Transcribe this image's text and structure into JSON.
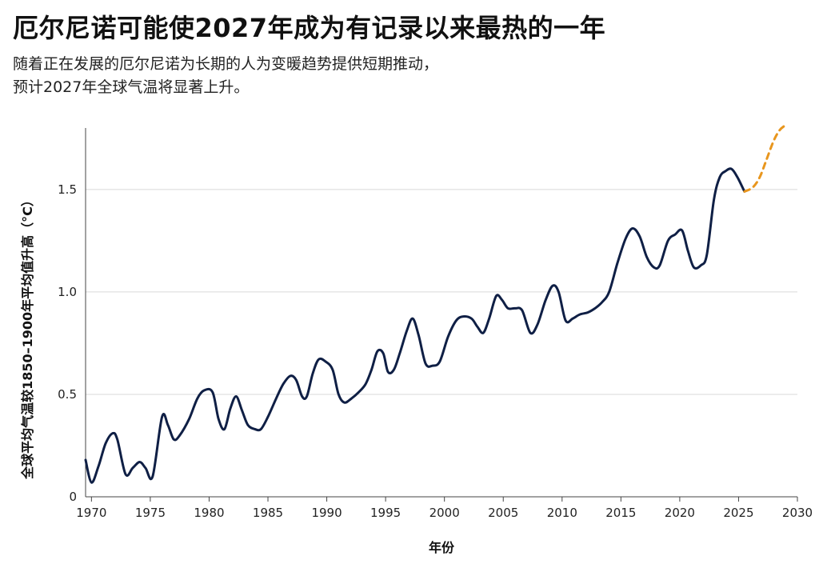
{
  "chart_data": {
    "type": "line",
    "title": "厄尔尼诺可能使2027年成为有记录以来最热的一年",
    "subtitle_lines": [
      "随着正在发展的厄尔尼诺为长期的人为变暖趋势提供短期推动，",
      "预计2027年全球气温将显著上升。"
    ],
    "xlabel": "年份",
    "ylabel": "全球平均气温较1850–1900年平均值升高（°C）",
    "xlim": [
      1969.5,
      2030
    ],
    "ylim": [
      0,
      1.8
    ],
    "xticks": [
      1970,
      1975,
      1980,
      1985,
      1990,
      1995,
      2000,
      2005,
      2010,
      2015,
      2020,
      2025,
      2030
    ],
    "yticks": [
      0,
      0.5,
      1.0,
      1.5
    ],
    "ytick_labels": [
      "0",
      "0.5",
      "1.0",
      "1.5"
    ],
    "grid": "horizontal",
    "series": [
      {
        "style": "solid",
        "color": "#0f1f45",
        "points": [
          [
            1969.5,
            0.18
          ],
          [
            1970.0,
            0.07
          ],
          [
            1970.6,
            0.15
          ],
          [
            1971.2,
            0.26
          ],
          [
            1971.8,
            0.31
          ],
          [
            1972.2,
            0.28
          ],
          [
            1972.9,
            0.11
          ],
          [
            1973.5,
            0.14
          ],
          [
            1974.1,
            0.17
          ],
          [
            1974.6,
            0.14
          ],
          [
            1975.2,
            0.1
          ],
          [
            1976.0,
            0.39
          ],
          [
            1976.5,
            0.35
          ],
          [
            1977.0,
            0.28
          ],
          [
            1977.5,
            0.3
          ],
          [
            1978.3,
            0.38
          ],
          [
            1979.0,
            0.48
          ],
          [
            1979.6,
            0.52
          ],
          [
            1980.3,
            0.51
          ],
          [
            1980.8,
            0.38
          ],
          [
            1981.3,
            0.33
          ],
          [
            1981.8,
            0.43
          ],
          [
            1982.3,
            0.49
          ],
          [
            1982.8,
            0.42
          ],
          [
            1983.3,
            0.35
          ],
          [
            1983.9,
            0.33
          ],
          [
            1984.4,
            0.33
          ],
          [
            1985.0,
            0.39
          ],
          [
            1985.7,
            0.48
          ],
          [
            1986.3,
            0.55
          ],
          [
            1986.9,
            0.59
          ],
          [
            1987.4,
            0.57
          ],
          [
            1987.9,
            0.49
          ],
          [
            1988.3,
            0.49
          ],
          [
            1988.8,
            0.6
          ],
          [
            1989.3,
            0.67
          ],
          [
            1989.9,
            0.66
          ],
          [
            1990.5,
            0.62
          ],
          [
            1991.0,
            0.5
          ],
          [
            1991.5,
            0.46
          ],
          [
            1992.1,
            0.48
          ],
          [
            1992.7,
            0.51
          ],
          [
            1993.3,
            0.55
          ],
          [
            1993.8,
            0.62
          ],
          [
            1994.3,
            0.71
          ],
          [
            1994.8,
            0.7
          ],
          [
            1995.2,
            0.61
          ],
          [
            1995.7,
            0.62
          ],
          [
            1996.2,
            0.7
          ],
          [
            1996.8,
            0.81
          ],
          [
            1997.3,
            0.87
          ],
          [
            1997.8,
            0.79
          ],
          [
            1998.4,
            0.65
          ],
          [
            1999.0,
            0.64
          ],
          [
            1999.6,
            0.66
          ],
          [
            2000.3,
            0.78
          ],
          [
            2001.0,
            0.86
          ],
          [
            2001.6,
            0.88
          ],
          [
            2002.3,
            0.87
          ],
          [
            2002.8,
            0.83
          ],
          [
            2003.3,
            0.8
          ],
          [
            2003.8,
            0.87
          ],
          [
            2004.4,
            0.98
          ],
          [
            2004.9,
            0.96
          ],
          [
            2005.4,
            0.92
          ],
          [
            2006.0,
            0.92
          ],
          [
            2006.6,
            0.91
          ],
          [
            2007.3,
            0.8
          ],
          [
            2007.9,
            0.84
          ],
          [
            2008.6,
            0.96
          ],
          [
            2009.2,
            1.03
          ],
          [
            2009.7,
            1.0
          ],
          [
            2010.3,
            0.86
          ],
          [
            2010.9,
            0.87
          ],
          [
            2011.5,
            0.89
          ],
          [
            2012.2,
            0.9
          ],
          [
            2012.8,
            0.92
          ],
          [
            2013.4,
            0.95
          ],
          [
            2014.0,
            1.0
          ],
          [
            2014.7,
            1.14
          ],
          [
            2015.4,
            1.26
          ],
          [
            2016.0,
            1.31
          ],
          [
            2016.6,
            1.27
          ],
          [
            2017.2,
            1.17
          ],
          [
            2017.8,
            1.12
          ],
          [
            2018.3,
            1.13
          ],
          [
            2019.0,
            1.25
          ],
          [
            2019.6,
            1.28
          ],
          [
            2020.2,
            1.3
          ],
          [
            2020.7,
            1.2
          ],
          [
            2021.2,
            1.12
          ],
          [
            2021.8,
            1.13
          ],
          [
            2022.3,
            1.18
          ],
          [
            2022.9,
            1.45
          ],
          [
            2023.4,
            1.56
          ],
          [
            2023.9,
            1.59
          ],
          [
            2024.4,
            1.6
          ],
          [
            2024.9,
            1.56
          ],
          [
            2025.5,
            1.49
          ]
        ]
      },
      {
        "style": "dashed",
        "color": "#e8961e",
        "points": [
          [
            2025.5,
            1.49
          ],
          [
            2026.2,
            1.51
          ],
          [
            2026.8,
            1.56
          ],
          [
            2027.4,
            1.65
          ],
          [
            2028.0,
            1.74
          ],
          [
            2028.5,
            1.79
          ],
          [
            2028.9,
            1.81
          ]
        ]
      }
    ]
  }
}
